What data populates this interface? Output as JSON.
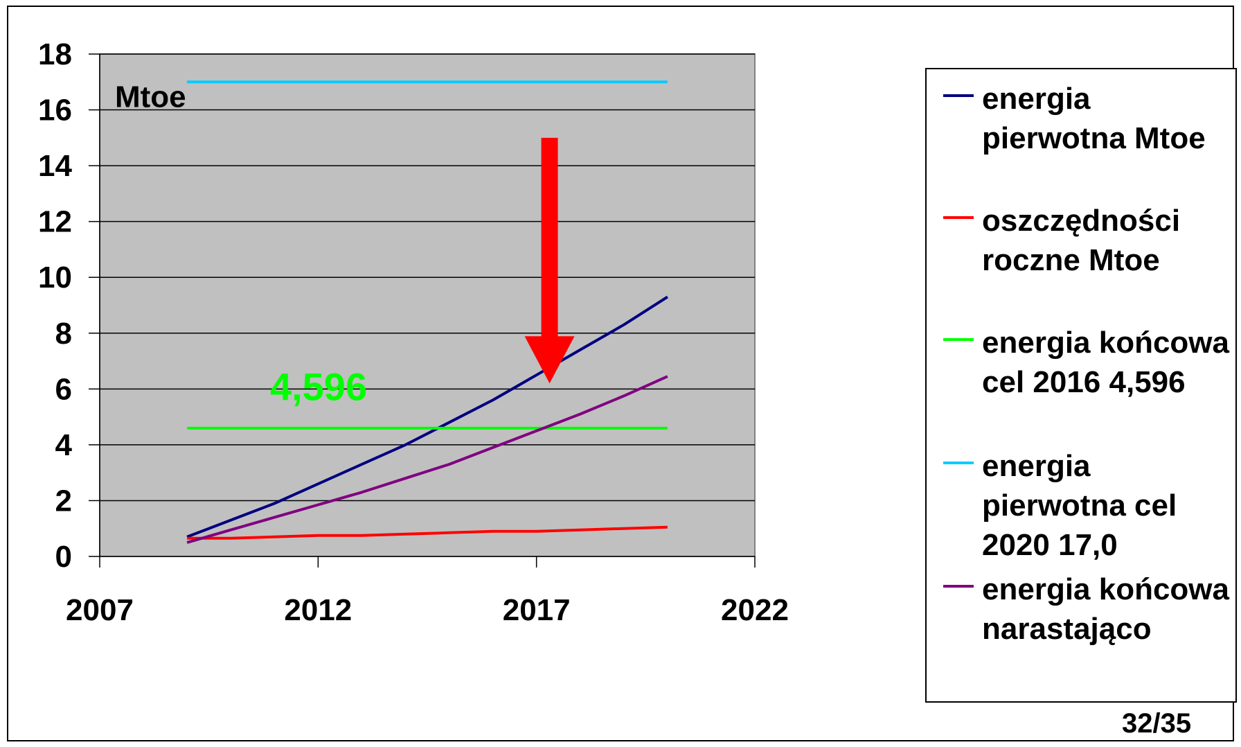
{
  "chart_data": {
    "type": "line",
    "xlim": [
      2007,
      2022
    ],
    "ylim": [
      0,
      18
    ],
    "x_ticks": [
      2007,
      2012,
      2017,
      2022
    ],
    "y_ticks": [
      0,
      2,
      4,
      6,
      8,
      10,
      12,
      14,
      16,
      18
    ],
    "grid": "horizontal",
    "legend_position": "right",
    "unit_label": "Mtoe",
    "annotation_value": "4,596",
    "series": [
      {
        "name": "energia pierwotna Mtoe",
        "color": "#000080",
        "x": [
          2009,
          2010,
          2011,
          2012,
          2013,
          2014,
          2015,
          2016,
          2017,
          2018,
          2019,
          2020
        ],
        "y": [
          0.7,
          1.3,
          1.9,
          2.6,
          3.3,
          4.0,
          4.8,
          5.6,
          6.5,
          7.4,
          8.3,
          9.3
        ]
      },
      {
        "name": "oszczędności roczne Mtoe",
        "color": "#ff0000",
        "x": [
          2009,
          2010,
          2011,
          2012,
          2013,
          2014,
          2015,
          2016,
          2017,
          2018,
          2019,
          2020
        ],
        "y": [
          0.65,
          0.65,
          0.7,
          0.75,
          0.75,
          0.8,
          0.85,
          0.9,
          0.9,
          0.95,
          1.0,
          1.05
        ]
      },
      {
        "name": "energia końcowa cel 2016   4,596",
        "color": "#00ff00",
        "x": [
          2009,
          2020
        ],
        "y": [
          4.596,
          4.596
        ]
      },
      {
        "name": "energia pierwotna cel 2020   17,0",
        "color": "#00ccff",
        "x": [
          2009,
          2020
        ],
        "y": [
          17.0,
          17.0
        ]
      },
      {
        "name": "energia końcowa narastająco",
        "color": "#800080",
        "x": [
          2009,
          2010,
          2011,
          2012,
          2013,
          2014,
          2015,
          2016,
          2017,
          2018,
          2019,
          2020
        ],
        "y": [
          0.5,
          0.95,
          1.4,
          1.85,
          2.3,
          2.8,
          3.3,
          3.9,
          4.5,
          5.1,
          5.75,
          6.45
        ]
      }
    ],
    "arrow": {
      "x": 2017.3,
      "y_from": 15.0,
      "y_to": 6.2,
      "color": "#ff0000"
    }
  },
  "page_number": "32/35",
  "colors": {
    "plot_bg": "#c0c0c0"
  }
}
